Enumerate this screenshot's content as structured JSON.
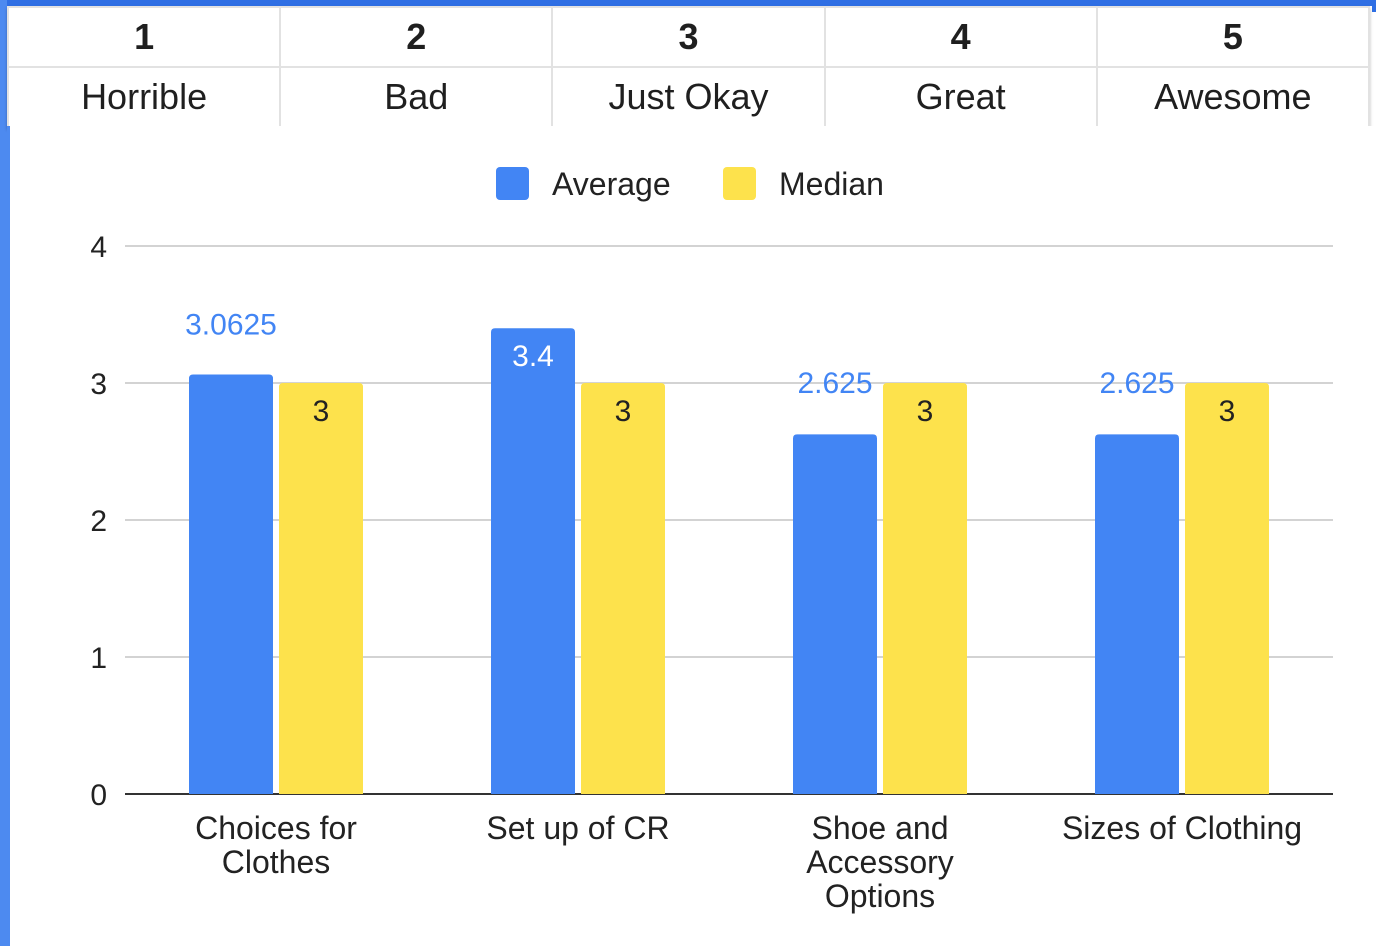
{
  "rating_scale": [
    {
      "number": "1",
      "label": "Horrible"
    },
    {
      "number": "2",
      "label": "Bad"
    },
    {
      "number": "3",
      "label": "Just Okay"
    },
    {
      "number": "4",
      "label": "Great"
    },
    {
      "number": "5",
      "label": "Awesome"
    }
  ],
  "colors": {
    "average": "#4285f4",
    "median": "#fde24c",
    "grid": "#d3d3d3",
    "axis": "#333333",
    "average_label": "#4285f4"
  },
  "chart_data": {
    "type": "bar",
    "title": "",
    "xlabel": "",
    "ylabel": "",
    "legend_position": "top",
    "grid": true,
    "ylim": [
      0,
      4
    ],
    "yticks": [
      "0",
      "1",
      "2",
      "3",
      "4"
    ],
    "categories": [
      [
        "Choices for",
        "Clothes"
      ],
      [
        "Set up of CR"
      ],
      [
        "Shoe and",
        "Accessory",
        "Options"
      ],
      [
        "Sizes of Clothing"
      ]
    ],
    "series": [
      {
        "name": "Average",
        "values": [
          3.0625,
          3.4,
          2.625,
          2.625
        ],
        "labels": [
          "3.0625",
          "3.4",
          "2.625",
          "2.625"
        ]
      },
      {
        "name": "Median",
        "values": [
          3,
          3,
          3,
          3
        ],
        "labels": [
          "3",
          "3",
          "3",
          "3"
        ]
      }
    ]
  }
}
